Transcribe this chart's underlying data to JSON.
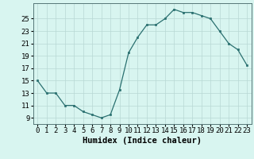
{
  "x": [
    0,
    1,
    2,
    3,
    4,
    5,
    6,
    7,
    8,
    9,
    10,
    11,
    12,
    13,
    14,
    15,
    16,
    17,
    18,
    19,
    20,
    21,
    22,
    23
  ],
  "y": [
    15,
    13,
    13,
    11,
    11,
    10,
    9.5,
    9,
    9.5,
    13.5,
    19.5,
    22,
    24,
    24,
    25,
    26.5,
    26,
    26,
    25.5,
    25,
    23,
    21,
    20,
    17.5
  ],
  "line_color": "#2a7070",
  "marker": "s",
  "marker_size": 2,
  "bg_color": "#d8f5f0",
  "grid_color": "#b8d8d4",
  "xlabel": "Humidex (Indice chaleur)",
  "xlim": [
    -0.5,
    23.5
  ],
  "ylim": [
    8,
    27.5
  ],
  "yticks": [
    9,
    11,
    13,
    15,
    17,
    19,
    21,
    23,
    25
  ],
  "xtick_labels": [
    "0",
    "1",
    "2",
    "3",
    "4",
    "5",
    "6",
    "7",
    "8",
    "9",
    "10",
    "11",
    "12",
    "13",
    "14",
    "15",
    "16",
    "17",
    "18",
    "19",
    "20",
    "21",
    "22",
    "23"
  ],
  "xlabel_fontsize": 7.5,
  "tick_fontsize": 6.5
}
